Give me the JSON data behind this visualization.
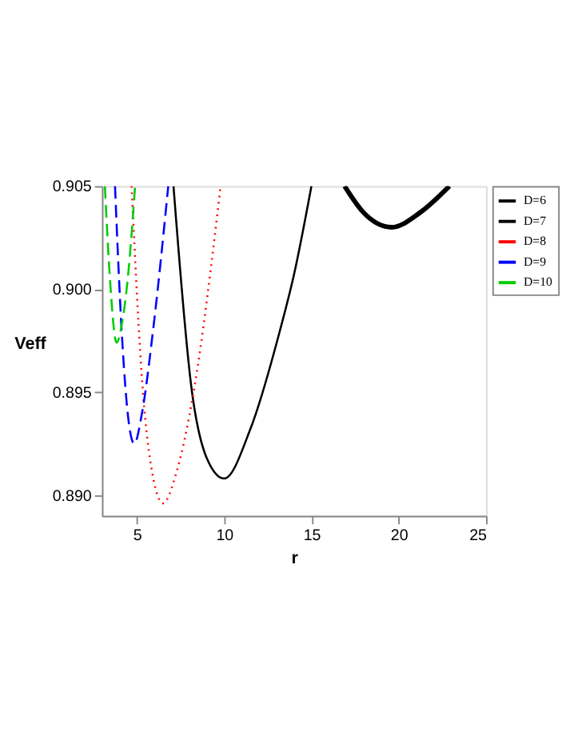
{
  "chart_data": {
    "type": "line",
    "xlabel": "r",
    "ylabel": "Veff",
    "xlim": [
      3,
      25
    ],
    "xticks": [
      5,
      10,
      15,
      20,
      25
    ],
    "ylim": [
      0.889,
      0.905
    ],
    "yticks": [
      {
        "value": 0.89,
        "label": "0.890"
      },
      0.895,
      {
        "value": 0.9,
        "label": "0.900"
      },
      0.905
    ],
    "legend": "right",
    "grid": false,
    "series": [
      {
        "name": "D=6",
        "color": "#000000",
        "line_style": "solid",
        "x": [
          16.9,
          18.0,
          19.6,
          21.2,
          22.9
        ],
        "values": [
          0.905,
          0.9037,
          0.903,
          0.9037,
          0.905
        ]
      },
      {
        "name": "D=7",
        "color": "#000000",
        "line_style": "solid",
        "x": [
          7.1,
          8.16,
          9.0,
          10.0,
          11.5,
          13.2,
          14.0,
          15.0
        ],
        "values": [
          0.905,
          0.895,
          0.8918,
          0.8908,
          0.8932,
          0.898,
          0.9007,
          0.905
        ]
      },
      {
        "name": "D=8",
        "color": "#ff0000",
        "line_style": "dotted",
        "x": [
          4.7,
          5.35,
          5.9,
          6.5,
          7.3,
          8.25,
          9.8
        ],
        "values": [
          0.905,
          0.895,
          0.891,
          0.8896,
          0.8912,
          0.895,
          0.905
        ]
      },
      {
        "name": "D=9",
        "color": "#0000ff",
        "line_style": "dashed",
        "x": [
          3.75,
          4.13,
          4.5,
          4.85,
          5.3,
          5.93,
          6.8
        ],
        "values": [
          0.905,
          0.898,
          0.8938,
          0.8925,
          0.894,
          0.898,
          0.905
        ]
      },
      {
        "name": "D=10",
        "color": "#00cc00",
        "line_style": "dashed",
        "x": [
          3.17,
          3.46,
          3.84,
          4.2,
          4.48,
          4.9
        ],
        "values": [
          0.905,
          0.9005,
          0.8974,
          0.8986,
          0.9005,
          0.905
        ]
      }
    ]
  }
}
